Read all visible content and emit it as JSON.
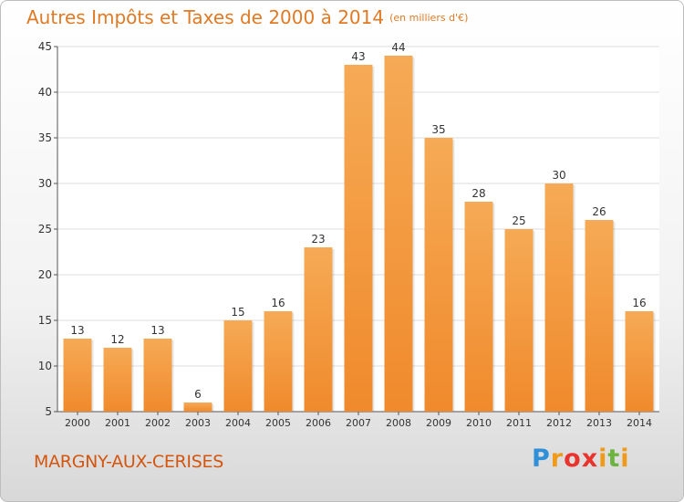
{
  "title": "Autres Impôts et Taxes de 2000 à 2014",
  "unit_note": "(en milliers d'€)",
  "city": "MARGNY-AUX-CERISES",
  "logo": {
    "text": "Proxiti",
    "letters": [
      "P",
      "r",
      "o",
      "x",
      "i",
      "t",
      "i"
    ]
  },
  "colors": {
    "bar": "#f08a2c",
    "bar_light": "#f6aa55",
    "title": "#e07a24",
    "city": "#d4560e"
  },
  "chart_data": {
    "type": "bar",
    "title": "Autres Impôts et Taxes de 2000 à 2014",
    "ylabel": "",
    "xlabel": "",
    "categories": [
      "2000",
      "2001",
      "2002",
      "2003",
      "2004",
      "2005",
      "2006",
      "2007",
      "2008",
      "2009",
      "2010",
      "2011",
      "2012",
      "2013",
      "2014"
    ],
    "values": [
      13,
      12,
      13,
      6,
      15,
      16,
      23,
      43,
      44,
      35,
      28,
      25,
      30,
      26,
      16
    ],
    "ylim": [
      5,
      45
    ],
    "yticks": [
      5,
      10,
      15,
      20,
      25,
      30,
      35,
      40,
      45
    ],
    "grid": true,
    "legend": "none"
  }
}
